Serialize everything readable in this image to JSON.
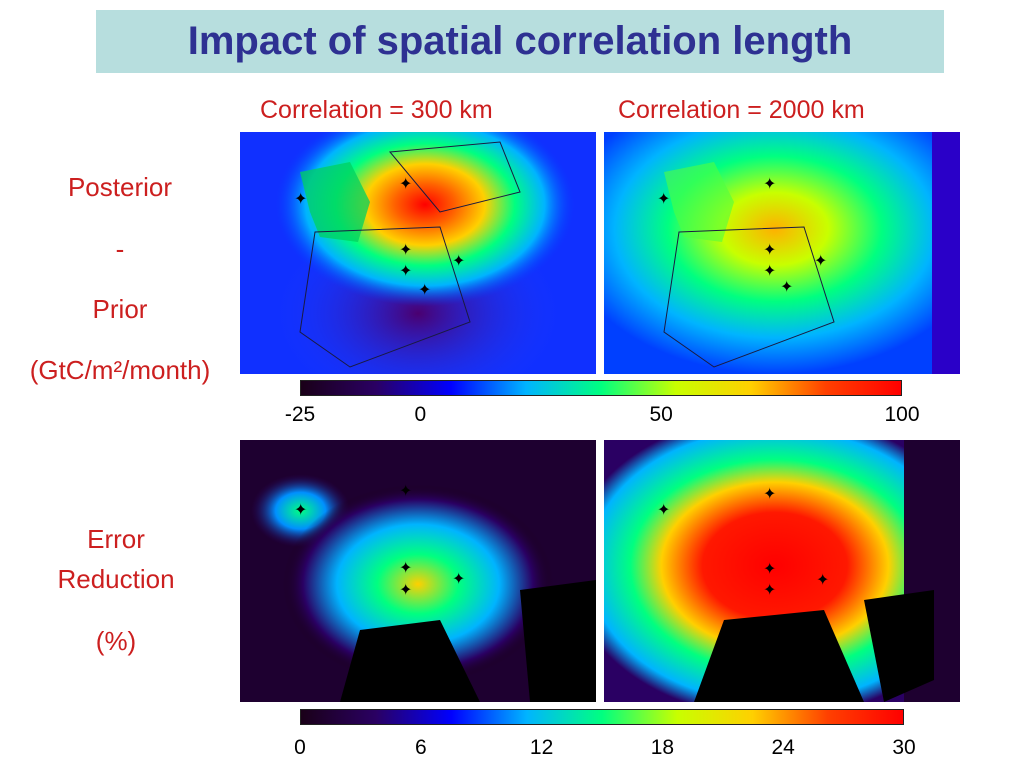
{
  "title": "Impact of spatial correlation length",
  "columns": [
    "Correlation = 300 km",
    "Correlation = 2000 km"
  ],
  "rows": {
    "top": {
      "lines": [
        "Posterior",
        "-",
        "Prior",
        "(GtC/m²/month)"
      ]
    },
    "bottom": {
      "lines": [
        "Error",
        "Reduction",
        "(%)"
      ]
    }
  },
  "colorbars": {
    "top": {
      "ticks": [
        "-25",
        "0",
        "50",
        "100"
      ],
      "tick_values": [
        -25,
        0,
        50,
        100
      ],
      "range": [
        -25,
        100
      ]
    },
    "bottom": {
      "ticks": [
        "0",
        "6",
        "12",
        "18",
        "24",
        "30"
      ],
      "tick_values": [
        0,
        6,
        12,
        18,
        24,
        30
      ],
      "range": [
        0,
        30
      ]
    }
  },
  "colormap": [
    "#1a0018",
    "#2a0063",
    "#0000ff",
    "#00b4ff",
    "#00ff80",
    "#c8ff00",
    "#ffd000",
    "#ff4000",
    "#ff0000"
  ],
  "icons": {
    "station_marker": "star-marker-icon"
  }
}
